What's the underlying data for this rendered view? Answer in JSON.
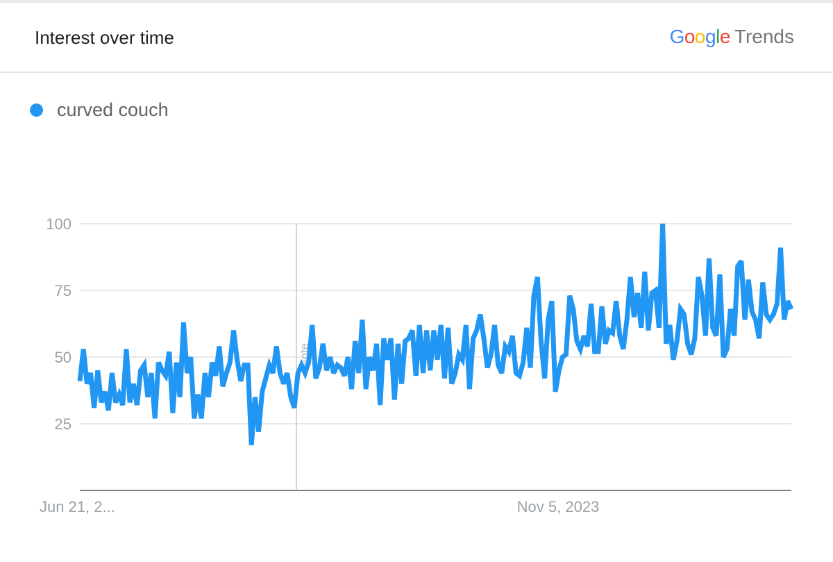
{
  "header": {
    "title": "Interest over time",
    "brand": {
      "letters": [
        "G",
        "o",
        "o",
        "g",
        "l",
        "e"
      ],
      "letter_colors": [
        "#4285f4",
        "#ea4335",
        "#fbbc05",
        "#4285f4",
        "#34a853",
        "#ea4335"
      ],
      "product": "Trends"
    }
  },
  "legend": {
    "label": "curved couch",
    "color": "#2196f3"
  },
  "chart_data": {
    "type": "line",
    "title": "Interest over time",
    "xlabel": "",
    "ylabel": "",
    "ylim": [
      0,
      100
    ],
    "yticks": [
      25,
      50,
      75,
      100
    ],
    "grid": true,
    "legend_position": "top-left",
    "x_labels": [
      "Jun 21, 2...",
      "Nov 5, 2023"
    ],
    "annotation": {
      "text": "Note",
      "type": "vertical-line"
    },
    "series": [
      {
        "name": "curved couch",
        "color": "#2196f3",
        "values": [
          41,
          53,
          40,
          44,
          31,
          45,
          33,
          37,
          30,
          44,
          33,
          36,
          32,
          53,
          33,
          40,
          32,
          45,
          47,
          35,
          44,
          27,
          48,
          45,
          43,
          52,
          29,
          48,
          35,
          63,
          44,
          50,
          27,
          36,
          27,
          44,
          35,
          48,
          43,
          54,
          39,
          44,
          48,
          60,
          49,
          41,
          47,
          47,
          17,
          35,
          22,
          37,
          42,
          47,
          44,
          54,
          44,
          40,
          44,
          35,
          31,
          44,
          47,
          44,
          48,
          62,
          42,
          46,
          55,
          45,
          50,
          44,
          47,
          46,
          43,
          50,
          38,
          56,
          44,
          64,
          38,
          50,
          45,
          55,
          32,
          57,
          49,
          57,
          34,
          55,
          40,
          56,
          57,
          60,
          43,
          62,
          44,
          60,
          45,
          60,
          49,
          62,
          42,
          61,
          40,
          44,
          51,
          49,
          62,
          38,
          57,
          60,
          66,
          57,
          46,
          51,
          62,
          47,
          44,
          54,
          52,
          58,
          44,
          43,
          48,
          61,
          46,
          73,
          80,
          56,
          42,
          64,
          71,
          37,
          45,
          50,
          51,
          73,
          68,
          56,
          53,
          58,
          54,
          70,
          52,
          52,
          69,
          55,
          60,
          59,
          71,
          58,
          53,
          64,
          80,
          65,
          74,
          61,
          82,
          60,
          74,
          75,
          61,
          100,
          55,
          62,
          49,
          56,
          68,
          66,
          55,
          51,
          57,
          80,
          73,
          58,
          87,
          61,
          58,
          81,
          50,
          53,
          68,
          58,
          84,
          86,
          64,
          79,
          67,
          64,
          57,
          78,
          66,
          64,
          66,
          70,
          91,
          64,
          71,
          68
        ]
      }
    ]
  }
}
